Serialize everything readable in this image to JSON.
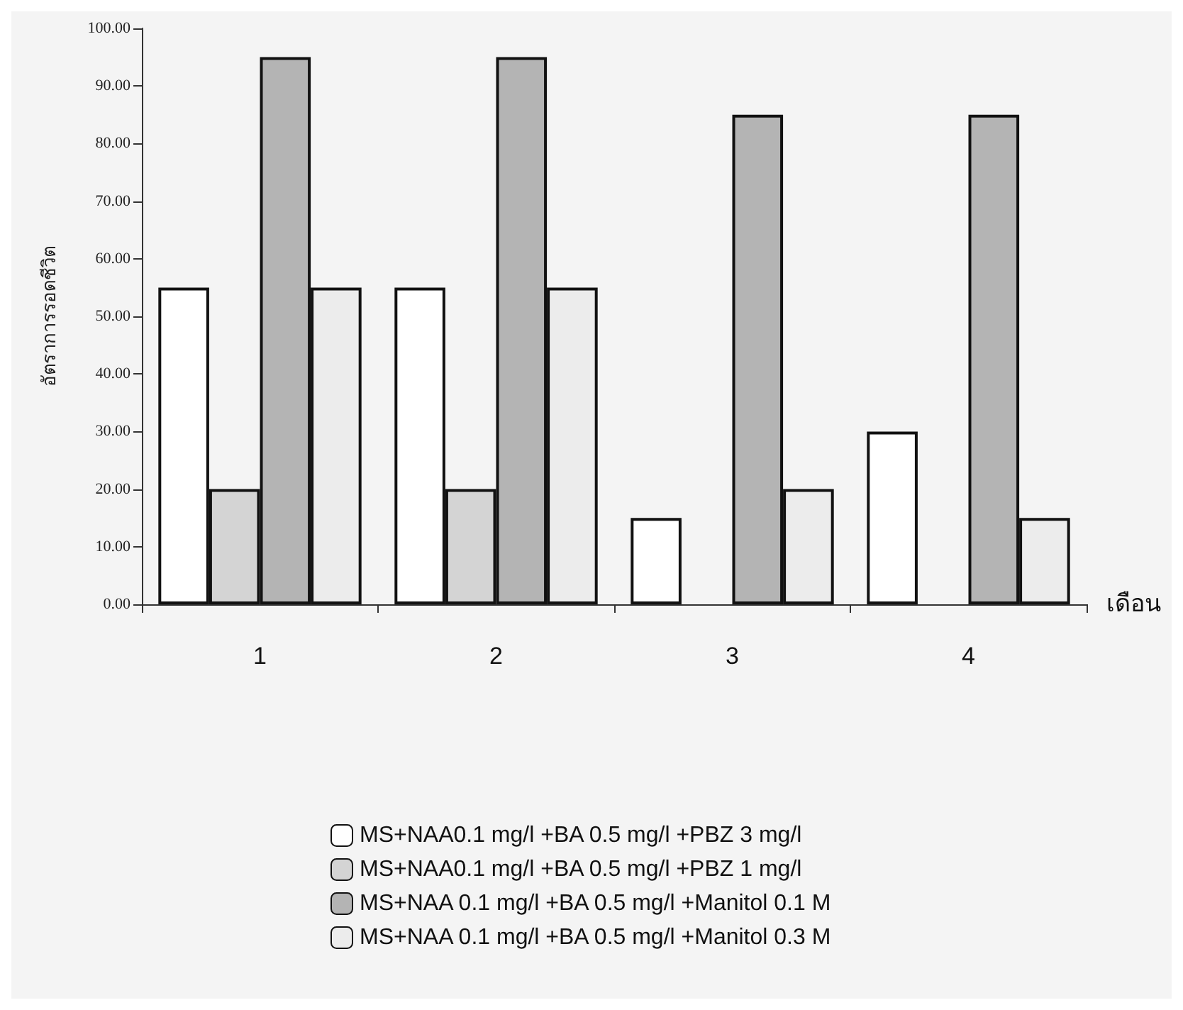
{
  "chart_data": {
    "type": "bar",
    "xlabel": "เดือน",
    "ylabel": "อัตราการรอดชีวิต",
    "categories": [
      "1",
      "2",
      "3",
      "4"
    ],
    "series": [
      {
        "name": "MS+NAA0.1 mg/l +BA 0.5 mg/l +PBZ 3 mg/l",
        "color": "#ffffff",
        "values": [
          55,
          55,
          15,
          30
        ]
      },
      {
        "name": "MS+NAA0.1 mg/l +BA 0.5 mg/l +PBZ 1 mg/l",
        "color": "#d4d4d4",
        "values": [
          20,
          20,
          null,
          null
        ]
      },
      {
        "name": "MS+NAA 0.1 mg/l +BA 0.5 mg/l +Manitol 0.1 M",
        "color": "#b4b4b4",
        "values": [
          95,
          95,
          85,
          85
        ]
      },
      {
        "name": "MS+NAA 0.1 mg/l +BA 0.5 mg/l +Manitol 0.3 M",
        "color": "#ececec",
        "values": [
          55,
          55,
          20,
          15
        ]
      }
    ],
    "ylim": [
      0,
      100
    ],
    "yticks": [
      {
        "value": 0,
        "label": "0.00"
      },
      {
        "value": 10,
        "label": "10.00"
      },
      {
        "value": 20,
        "label": "20.00"
      },
      {
        "value": 30,
        "label": "30.00"
      },
      {
        "value": 40,
        "label": "40.00"
      },
      {
        "value": 50,
        "label": "50.00"
      },
      {
        "value": 60,
        "label": "60.00"
      },
      {
        "value": 70,
        "label": "70.00"
      },
      {
        "value": 80,
        "label": "80.00"
      },
      {
        "value": 90,
        "label": "90.00"
      },
      {
        "value": 100,
        "label": "100.00"
      }
    ],
    "grid": false,
    "legend": "bottom"
  }
}
